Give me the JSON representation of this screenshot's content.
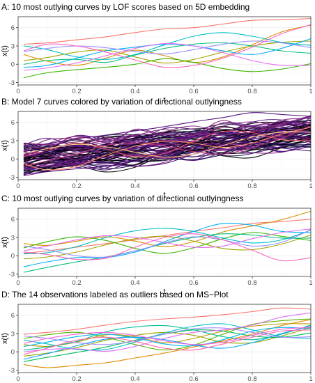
{
  "colors": {
    "hue10": [
      "#F8766D",
      "#D89000",
      "#A3A500",
      "#39B600",
      "#00BF7D",
      "#00BFC4",
      "#00B0F6",
      "#9590FF",
      "#E76BF3",
      "#FF62BC"
    ],
    "hue14": [
      "#F8766D",
      "#E38900",
      "#C49A00",
      "#99A800",
      "#53B400",
      "#00BC56",
      "#00C094",
      "#00BFC4",
      "#00B6EB",
      "#06A4FF",
      "#A58AFF",
      "#DF70F8",
      "#FB61D7",
      "#FF66A8"
    ],
    "magma": [
      "#000004",
      "#1D1147",
      "#51127C",
      "#832681",
      "#B73779",
      "#E75263",
      "#FC8961",
      "#FEC98D"
    ]
  },
  "chart_data": [
    {
      "type": "line",
      "title": "A: 10 most outlying curves by LOF scores based on 5D embedding",
      "xlabel": "t",
      "ylabel": "x(t)",
      "xlim": [
        0,
        1
      ],
      "ylim": [
        -3.4,
        7.8
      ],
      "xticks": [
        "0",
        "0.2",
        "0.4",
        "0.6",
        "0.8",
        "1"
      ],
      "xtick_values": [
        0,
        0.2,
        0.4,
        0.6,
        0.8,
        1
      ],
      "yticks": [
        "-3",
        "0",
        "3",
        "6"
      ],
      "ytick_values": [
        -3,
        0,
        3,
        6
      ],
      "grid": true,
      "palette": "hue10",
      "x": [
        0.02,
        0.1,
        0.2,
        0.3,
        0.4,
        0.5,
        0.6,
        0.7,
        0.8,
        0.9,
        1.0
      ],
      "series": [
        {
          "values": [
            3.3,
            3.5,
            4.0,
            4.5,
            5.2,
            5.8,
            6.0,
            6.6,
            7.2,
            7.3,
            7.5
          ]
        },
        {
          "values": [
            1.6,
            0.5,
            -0.2,
            1.0,
            2.3,
            1.4,
            0.3,
            1.2,
            3.2,
            5.3,
            6.4
          ]
        },
        {
          "values": [
            0.6,
            1.1,
            2.0,
            2.3,
            1.2,
            0.2,
            0.8,
            2.0,
            3.0,
            3.6,
            3.8
          ]
        },
        {
          "values": [
            -2.2,
            -1.4,
            -0.9,
            -0.5,
            0.0,
            0.9,
            0.3,
            -0.7,
            -1.2,
            -0.8,
            0.1
          ]
        },
        {
          "values": [
            0.0,
            0.6,
            0.8,
            0.3,
            1.5,
            2.6,
            3.3,
            3.5,
            3.0,
            2.2,
            1.8
          ]
        },
        {
          "values": [
            3.0,
            2.4,
            1.2,
            0.8,
            1.6,
            3.2,
            4.6,
            5.2,
            4.6,
            3.6,
            3.1
          ]
        },
        {
          "values": [
            -0.5,
            -0.2,
            1.0,
            2.2,
            2.8,
            3.3,
            3.0,
            2.2,
            1.6,
            2.6,
            4.2
          ]
        },
        {
          "values": [
            2.1,
            2.6,
            3.0,
            2.7,
            2.1,
            1.7,
            2.4,
            3.3,
            3.8,
            3.5,
            2.7
          ]
        },
        {
          "values": [
            -1.0,
            -0.6,
            0.2,
            1.4,
            2.6,
            3.4,
            3.0,
            1.9,
            0.6,
            -0.2,
            -0.2
          ]
        },
        {
          "values": [
            2.2,
            3.3,
            3.0,
            2.0,
            0.7,
            -0.5,
            -0.2,
            1.0,
            2.8,
            5.0,
            6.5
          ]
        }
      ]
    },
    {
      "type": "line",
      "title": "B: Model 7 curves colored by variation of directional outlyingness",
      "xlabel": "t",
      "ylabel": "x(t)",
      "xlim": [
        0,
        1
      ],
      "ylim": [
        -3.4,
        7.8
      ],
      "xticks": [
        "0",
        "0.2",
        "0.4",
        "0.6",
        "0.8",
        "1"
      ],
      "xtick_values": [
        0,
        0.2,
        0.4,
        0.6,
        0.8,
        1
      ],
      "yticks": [
        "-3",
        "0",
        "3",
        "6"
      ],
      "ytick_values": [
        -3,
        0,
        3,
        6
      ],
      "grid": true,
      "palette": "magma",
      "x": [
        0.02,
        0.1,
        0.2,
        0.3,
        0.4,
        0.5,
        0.6,
        0.7,
        0.8,
        0.9,
        1.0
      ],
      "background_band": {
        "lower": [
          -2.0,
          -1.9,
          -1.5,
          -1.1,
          -0.6,
          -0.1,
          0.4,
          0.9,
          1.4,
          1.8,
          2.1
        ],
        "upper": [
          2.4,
          2.6,
          3.0,
          3.4,
          3.9,
          4.3,
          4.8,
          5.2,
          5.6,
          6.0,
          6.2
        ],
        "count": 70
      },
      "series": [
        {
          "values": [
            1.9,
            2.5,
            3.3,
            3.9,
            4.6,
            5.3,
            6.1,
            6.8,
            7.6,
            7.3,
            7.0
          ]
        },
        {
          "values": [
            -2.5,
            -2.1,
            -1.6,
            -1.2,
            -0.3,
            0.6,
            1.8,
            2.8,
            3.8,
            5.5,
            7.0
          ]
        },
        {
          "values": [
            2.6,
            2.4,
            2.8,
            3.3,
            2.9,
            2.4,
            3.0,
            4.0,
            4.4,
            5.4,
            6.0
          ]
        },
        {
          "values": [
            -1.2,
            -0.3,
            0.8,
            2.2,
            2.6,
            2.1,
            1.2,
            0.8,
            1.9,
            3.4,
            5.4
          ]
        },
        {
          "values": [
            0.4,
            1.4,
            2.6,
            1.6,
            0.4,
            0.9,
            2.9,
            4.5,
            4.3,
            3.2,
            3.0
          ]
        },
        {
          "values": [
            -0.8,
            -1.8,
            -1.2,
            0.6,
            2.1,
            2.9,
            2.6,
            1.9,
            2.6,
            4.1,
            5.2
          ]
        },
        {
          "values": [
            0.9,
            1.7,
            2.4,
            2.0,
            1.1,
            0.3,
            0.8,
            2.2,
            3.6,
            4.4,
            4.4
          ]
        },
        {
          "values": [
            2.0,
            1.2,
            0.3,
            0.9,
            2.4,
            3.7,
            4.6,
            4.3,
            3.1,
            2.2,
            2.4
          ]
        }
      ]
    },
    {
      "type": "line",
      "title": "C: 10 most outlying curves by variation of directional outlyingness",
      "xlabel": "t",
      "ylabel": "x(t)",
      "xlim": [
        0,
        1
      ],
      "ylim": [
        -3.4,
        7.8
      ],
      "xticks": [
        "0",
        "0.2",
        "0.4",
        "0.6",
        "0.8",
        "1"
      ],
      "xtick_values": [
        0,
        0.2,
        0.4,
        0.6,
        0.8,
        1
      ],
      "yticks": [
        "-3",
        "0",
        "3",
        "6"
      ],
      "ytick_values": [
        -3,
        0,
        3,
        6
      ],
      "grid": true,
      "palette": "hue10",
      "x": [
        0.02,
        0.1,
        0.2,
        0.3,
        0.4,
        0.5,
        0.6,
        0.7,
        0.8,
        0.9,
        1.0
      ],
      "series": [
        {
          "values": [
            0.4,
            0.8,
            1.4,
            2.0,
            2.6,
            3.3,
            4.0,
            4.6,
            5.3,
            5.6,
            6.0
          ]
        },
        {
          "values": [
            2.0,
            1.7,
            2.4,
            3.1,
            2.4,
            1.5,
            2.3,
            3.9,
            4.9,
            5.9,
            7.3
          ]
        },
        {
          "values": [
            -0.5,
            -0.2,
            0.6,
            1.8,
            2.8,
            3.2,
            2.4,
            1.2,
            1.0,
            1.9,
            3.4
          ]
        },
        {
          "values": [
            1.3,
            2.3,
            3.1,
            2.5,
            1.2,
            0.4,
            1.3,
            2.8,
            3.8,
            3.2,
            2.5
          ]
        },
        {
          "values": [
            -2.7,
            -1.9,
            -1.0,
            -0.2,
            0.8,
            2.0,
            3.0,
            3.6,
            3.4,
            2.9,
            2.9
          ]
        },
        {
          "values": [
            0.3,
            0.5,
            1.5,
            3.0,
            4.1,
            4.5,
            4.0,
            2.9,
            2.1,
            2.6,
            4.2
          ]
        },
        {
          "values": [
            -1.8,
            -1.0,
            -0.3,
            -0.3,
            0.6,
            2.3,
            4.0,
            5.3,
            5.0,
            4.0,
            3.8
          ]
        },
        {
          "values": [
            1.6,
            1.0,
            0.0,
            -0.2,
            0.8,
            2.1,
            3.1,
            2.6,
            1.6,
            2.2,
            4.3
          ]
        },
        {
          "values": [
            0.8,
            1.6,
            2.6,
            3.3,
            3.0,
            2.2,
            1.4,
            1.6,
            2.8,
            3.8,
            4.4
          ]
        },
        {
          "values": [
            0.6,
            0.2,
            -0.6,
            -0.4,
            1.4,
            3.0,
            3.6,
            2.6,
            0.9,
            -0.8,
            -0.3
          ]
        }
      ]
    },
    {
      "type": "line",
      "title": "D: The 14 observations labeled as outliers based on MS−Plot",
      "xlabel": "t",
      "ylabel": "x(t)",
      "xlim": [
        0,
        1
      ],
      "ylim": [
        -3.4,
        7.8
      ],
      "xticks": [
        "0",
        "0.2",
        "0.4",
        "0.6",
        "0.8",
        "1"
      ],
      "xtick_values": [
        0,
        0.2,
        0.4,
        0.6,
        0.8,
        1
      ],
      "yticks": [
        "-3",
        "0",
        "3",
        "6"
      ],
      "ytick_values": [
        -3,
        0,
        3,
        6
      ],
      "grid": true,
      "palette": "hue14",
      "x": [
        0.02,
        0.1,
        0.2,
        0.3,
        0.4,
        0.5,
        0.6,
        0.7,
        0.8,
        0.9,
        1.0
      ],
      "series": [
        {
          "values": [
            2.9,
            3.2,
            3.7,
            4.4,
            5.0,
            5.4,
            5.7,
            6.1,
            6.6,
            7.2,
            7.0
          ]
        },
        {
          "values": [
            -2.1,
            -2.6,
            -2.2,
            -1.8,
            -1.0,
            -0.2,
            0.8,
            1.8,
            2.9,
            4.3,
            5.3
          ]
        },
        {
          "values": [
            1.2,
            0.9,
            1.6,
            2.8,
            2.5,
            1.5,
            2.2,
            3.4,
            4.2,
            4.6,
            4.6
          ]
        },
        {
          "values": [
            -0.7,
            -0.2,
            0.7,
            1.9,
            2.7,
            3.2,
            2.7,
            1.6,
            1.5,
            2.6,
            4.0
          ]
        },
        {
          "values": [
            2.2,
            2.8,
            3.2,
            2.4,
            1.2,
            0.3,
            1.1,
            2.9,
            4.5,
            5.1,
            5.4
          ]
        },
        {
          "values": [
            -1.6,
            -0.9,
            -0.1,
            0.8,
            1.9,
            2.9,
            3.6,
            3.4,
            2.6,
            2.4,
            3.1
          ]
        },
        {
          "values": [
            0.3,
            0.8,
            1.7,
            3.3,
            4.1,
            4.3,
            3.6,
            2.5,
            2.0,
            2.9,
            4.4
          ]
        },
        {
          "values": [
            1.9,
            1.3,
            0.4,
            0.4,
            1.6,
            3.1,
            4.2,
            4.6,
            3.6,
            2.5,
            2.2
          ]
        },
        {
          "values": [
            0.9,
            1.6,
            2.5,
            2.9,
            2.3,
            1.3,
            1.0,
            2.0,
            3.4,
            4.0,
            3.8
          ]
        },
        {
          "values": [
            -1.2,
            -0.3,
            1.0,
            2.1,
            2.4,
            2.0,
            1.1,
            0.6,
            1.5,
            3.0,
            4.2
          ]
        },
        {
          "values": [
            2.6,
            2.2,
            1.5,
            1.2,
            1.8,
            2.9,
            3.8,
            3.9,
            3.2,
            2.4,
            2.5
          ]
        },
        {
          "values": [
            0.0,
            0.4,
            0.5,
            0.1,
            0.9,
            2.2,
            3.2,
            3.6,
            4.4,
            5.7,
            6.4
          ]
        },
        {
          "values": [
            1.4,
            2.2,
            2.9,
            3.2,
            2.7,
            1.8,
            1.2,
            1.6,
            2.7,
            3.7,
            4.0
          ]
        },
        {
          "values": [
            -0.4,
            0.6,
            1.9,
            2.4,
            1.7,
            0.6,
            0.3,
            1.3,
            2.4,
            3.4,
            3.6
          ]
        }
      ]
    }
  ]
}
